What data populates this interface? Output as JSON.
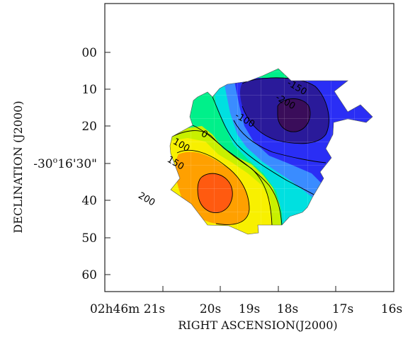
{
  "chart_data": {
    "type": "contour",
    "xlabel": "RIGHT ASCENSION(J2000)",
    "ylabel": "DECLINATION (J2000)",
    "x_ticks": [
      "02h46m 21s",
      "20s",
      "19s",
      "18s",
      "17s",
      "16s"
    ],
    "y_ticks": [
      "00",
      "10",
      "20",
      "40",
      "50",
      "60"
    ],
    "y_center_label": {
      "prefix": "-30",
      "deg": "o",
      "rest": "16'30\""
    },
    "xlim_seconds": [
      21,
      16
    ],
    "ylim_arcsec": [
      -15,
      65
    ],
    "contour_levels": [
      -200,
      -150,
      -100,
      0,
      100,
      150,
      200
    ],
    "contour_labels": [
      {
        "text": "-150",
        "ra": 17.7,
        "dec": 9
      },
      {
        "text": "-200",
        "ra": 17.9,
        "dec": 13
      },
      {
        "text": "-100",
        "ra": 18.6,
        "dec": 18
      },
      {
        "text": "0",
        "ra": 19.3,
        "dec": 22
      },
      {
        "text": "100",
        "ra": 19.7,
        "dec": 25
      },
      {
        "text": "150",
        "ra": 19.8,
        "dec": 30
      },
      {
        "text": "200",
        "ra": 20.3,
        "dec": 40
      }
    ],
    "colors": {
      "dark": "#3a0d5a",
      "navy": "#2a1a9a",
      "blue": "#2a2ef5",
      "lightblue": "#3a8cff",
      "cyan": "#00e0e0",
      "green": "#00f08a",
      "lime": "#c8f000",
      "yellow": "#f8f000",
      "orange": "#ffa000",
      "red": "#ff5a10"
    }
  }
}
